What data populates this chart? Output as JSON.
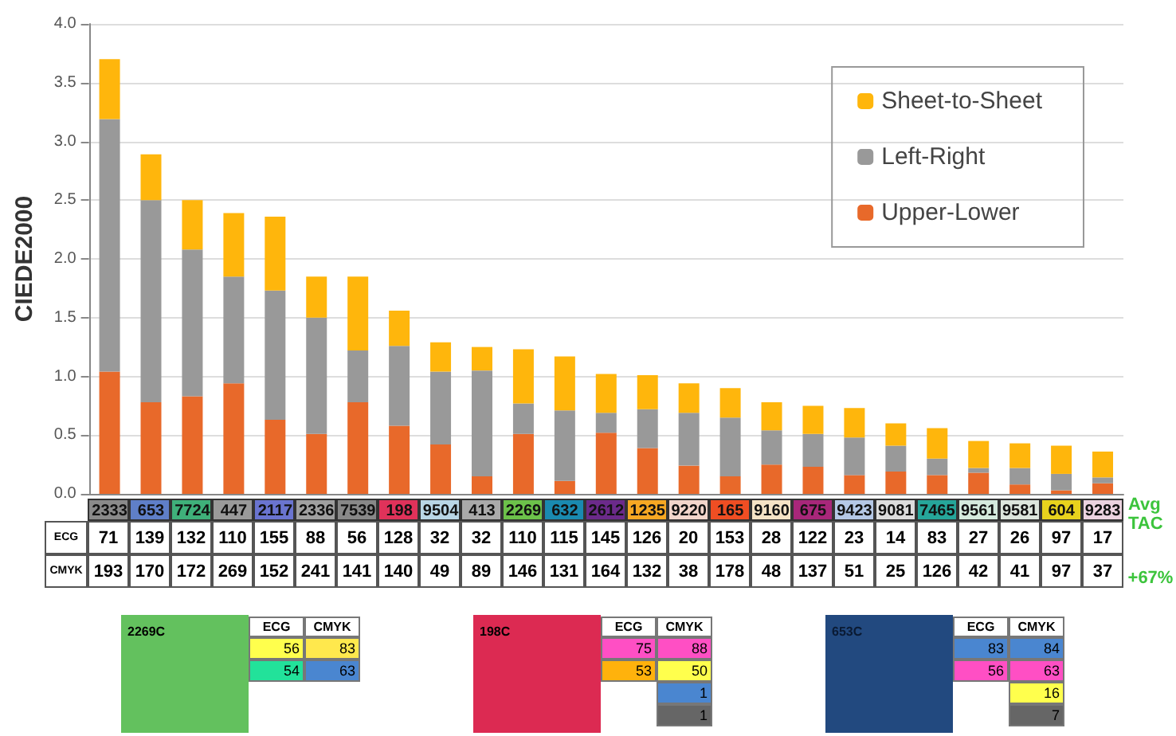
{
  "chart_data": {
    "type": "bar",
    "ylabel": "CIEDE2000",
    "categories": [
      "2333",
      "653",
      "7724",
      "447",
      "2117",
      "2336",
      "7539",
      "198",
      "9504",
      "413",
      "2269",
      "632",
      "2612",
      "1235",
      "9220",
      "165",
      "9160",
      "675",
      "9423",
      "9081",
      "7465",
      "9561",
      "9581",
      "604",
      "9283"
    ],
    "stacked": true,
    "series": [
      {
        "name": "Upper-Lower",
        "color": "#e8692a",
        "values": [
          1.04,
          0.78,
          0.83,
          0.94,
          0.63,
          0.51,
          0.78,
          0.58,
          0.42,
          0.15,
          0.51,
          0.11,
          0.52,
          0.39,
          0.24,
          0.15,
          0.25,
          0.23,
          0.16,
          0.19,
          0.16,
          0.18,
          0.08,
          0.03,
          0.09
        ]
      },
      {
        "name": "Left-Right",
        "color": "#999999",
        "values": [
          2.15,
          1.72,
          1.25,
          0.91,
          1.1,
          0.99,
          0.44,
          0.68,
          0.62,
          0.9,
          0.26,
          0.6,
          0.17,
          0.33,
          0.45,
          0.5,
          0.29,
          0.28,
          0.32,
          0.22,
          0.14,
          0.04,
          0.14,
          0.14,
          0.05
        ]
      },
      {
        "name": "Sheet-to-Sheet",
        "color": "#ffb60c",
        "values": [
          0.51,
          0.39,
          0.42,
          0.54,
          0.63,
          0.35,
          0.63,
          0.3,
          0.25,
          0.2,
          0.46,
          0.46,
          0.33,
          0.29,
          0.25,
          0.25,
          0.24,
          0.24,
          0.25,
          0.19,
          0.26,
          0.23,
          0.21,
          0.24,
          0.22
        ]
      }
    ],
    "ylim": [
      0,
      4
    ],
    "yticks": [
      {
        "value": 0,
        "label": "0.0"
      },
      {
        "value": 0.5,
        "label": "0.5"
      },
      {
        "value": 1,
        "label": "1.0"
      },
      {
        "value": 1.5,
        "label": "1.5"
      },
      {
        "value": 2,
        "label": "2.0"
      },
      {
        "value": 2.5,
        "label": "2.5"
      },
      {
        "value": 3,
        "label": "3.0"
      },
      {
        "value": 3.5,
        "label": "3.5"
      },
      {
        "value": 4,
        "label": "4.0"
      }
    ],
    "grid": "y",
    "legend": "top right",
    "annotations": [
      "Avg TAC",
      "+67%",
      "ECG",
      "71",
      "139",
      "132",
      "110",
      "155",
      "88",
      "56",
      "128",
      "32",
      "32",
      "110",
      "115",
      "145",
      "126",
      "20",
      "153",
      "28",
      "122",
      "23",
      "14",
      "83",
      "27",
      "26",
      "97",
      "17",
      "CMYK",
      "193",
      "170",
      "172",
      "269",
      "152",
      "241",
      "141",
      "140",
      "49",
      "89",
      "146",
      "131",
      "164",
      "132",
      "38",
      "178",
      "48",
      "137",
      "51",
      "25",
      "126",
      "42",
      "41",
      "97",
      "37",
      "2269C",
      "ECG",
      "CMYK",
      "56",
      "83",
      "54",
      "63",
      "198C",
      "ECG",
      "CMYK",
      "75",
      "88",
      "53",
      "50",
      "1",
      "1",
      "653C",
      "ECG",
      "CMYK",
      "83",
      "84",
      "56",
      "63",
      "16",
      "7"
    ]
  }
}
